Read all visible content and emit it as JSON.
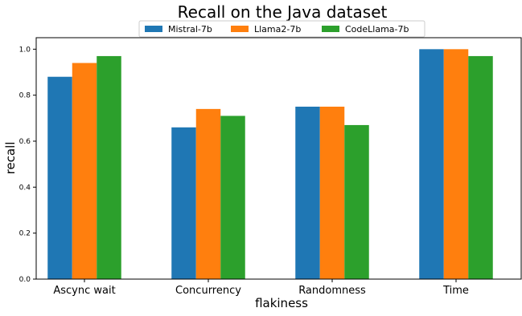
{
  "chart_data": {
    "type": "bar",
    "title": "Recall on the Java dataset",
    "xlabel": "flakiness",
    "ylabel": "recall",
    "categories": [
      "Ascync wait",
      "Concurrency",
      "Randomness",
      "Time"
    ],
    "series": [
      {
        "name": "Mistral-7b",
        "color": "#1f77b4",
        "values": [
          0.88,
          0.66,
          0.75,
          1.0
        ]
      },
      {
        "name": "Llama2-7b",
        "color": "#ff7f0e",
        "values": [
          0.94,
          0.74,
          0.75,
          1.0
        ]
      },
      {
        "name": "CodeLlama-7b",
        "color": "#2ca02c",
        "values": [
          0.97,
          0.71,
          0.67,
          0.97
        ]
      }
    ],
    "ylim": [
      0,
      1.05
    ],
    "yticks": [
      "0.0",
      "0.2",
      "0.4",
      "0.6",
      "0.8",
      "1.0"
    ],
    "grid": false,
    "legend_position": "top-center"
  }
}
